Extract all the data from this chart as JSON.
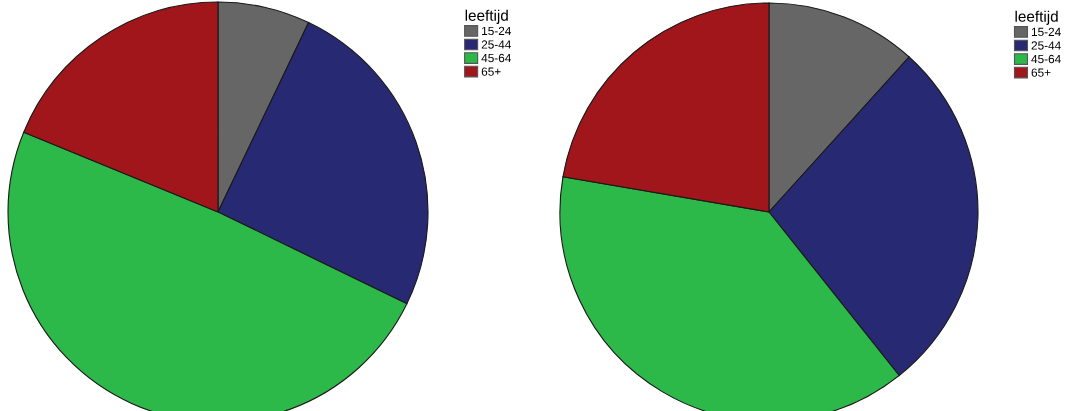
{
  "chart_data": [
    {
      "type": "pie",
      "legend_title": "leeftijd",
      "categories": [
        "15-24",
        "25-44",
        "45-64",
        "65+"
      ],
      "values": [
        7.1,
        25.1,
        49.0,
        18.8
      ],
      "colors": [
        "#666666",
        "#272973",
        "#2db84a",
        "#a0161b"
      ],
      "legend": "top right"
    },
    {
      "type": "pie",
      "legend_title": "leeftijd",
      "categories": [
        "15-24",
        "25-44",
        "45-64",
        "65+"
      ],
      "values": [
        11.7,
        27.6,
        38.4,
        22.3
      ],
      "colors": [
        "#666666",
        "#272973",
        "#2db84a",
        "#a0161b"
      ],
      "legend": "top right"
    }
  ]
}
